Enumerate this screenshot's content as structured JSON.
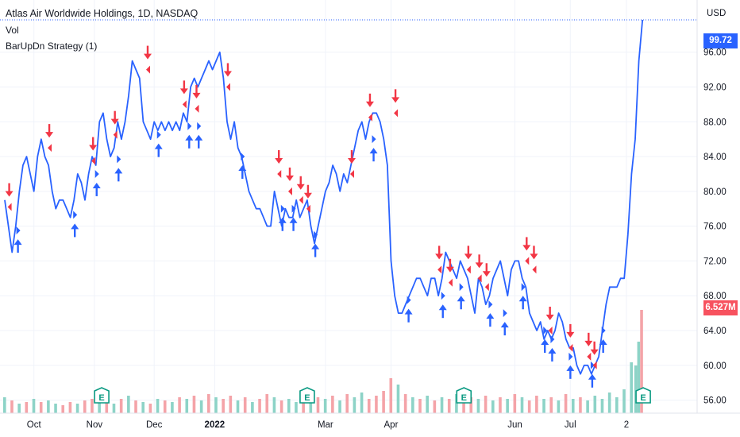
{
  "header": {
    "title": "Atlas Air Worldwide Holdings, 1D, NASDAQ",
    "vol_label": "Vol",
    "strategy_label": "BarUpDn Strategy (1)",
    "currency": "USD"
  },
  "price_label": {
    "value": "99.72",
    "color": "#2962ff"
  },
  "volume_label": {
    "value": "6.527M",
    "color": "#f7525f"
  },
  "colors": {
    "line": "#2962ff",
    "up": "#2962ff",
    "down": "#f23645",
    "vol_up": "#8dd3c7",
    "vol_down": "#f4a3a8",
    "earnings": "#089981"
  },
  "chart_data": {
    "type": "line",
    "ylabel": "",
    "yticks": [
      56,
      60,
      64,
      68,
      72,
      76,
      80,
      84,
      88,
      92,
      96
    ],
    "ytick_labels": [
      "56.00",
      "60.00",
      "64.00",
      "68.00",
      "72.00",
      "76.00",
      "80.00",
      "84.00",
      "88.00",
      "92.00",
      "96.00"
    ],
    "ylim": [
      54.5,
      102
    ],
    "xlim": [
      0,
      95
    ],
    "xticks": [
      {
        "label": "Oct",
        "x": 4
      },
      {
        "label": "Nov",
        "x": 12.3
      },
      {
        "label": "Dec",
        "x": 20.5
      },
      {
        "label": "2022",
        "x": 28.8
      },
      {
        "label": "Mar",
        "x": 44
      },
      {
        "label": "Apr",
        "x": 53
      },
      {
        "label": "Jun",
        "x": 70
      },
      {
        "label": "Jul",
        "x": 77.6
      },
      {
        "label": "2",
        "x": 85.3
      }
    ],
    "series": [
      {
        "values": [
          [
            0,
            79
          ],
          [
            0.5,
            76
          ],
          [
            1,
            73
          ],
          [
            1.5,
            76
          ],
          [
            2,
            80
          ],
          [
            2.5,
            83
          ],
          [
            3,
            84
          ],
          [
            3.5,
            82
          ],
          [
            4,
            80
          ],
          [
            4.5,
            84
          ],
          [
            5,
            86
          ],
          [
            5.5,
            84
          ],
          [
            6,
            83
          ],
          [
            6.5,
            80
          ],
          [
            7,
            78
          ],
          [
            7.5,
            79
          ],
          [
            8,
            79
          ],
          [
            8.5,
            78
          ],
          [
            9,
            77
          ],
          [
            9.5,
            79
          ],
          [
            10,
            82
          ],
          [
            10.5,
            81
          ],
          [
            11,
            79
          ],
          [
            11.5,
            82
          ],
          [
            12,
            84
          ],
          [
            12.5,
            83
          ],
          [
            13,
            88
          ],
          [
            13.5,
            89
          ],
          [
            14,
            86
          ],
          [
            14.5,
            84
          ],
          [
            15,
            85
          ],
          [
            15.5,
            88
          ],
          [
            16,
            86
          ],
          [
            16.5,
            88
          ],
          [
            17,
            91
          ],
          [
            17.5,
            95
          ],
          [
            18,
            94
          ],
          [
            18.5,
            93
          ],
          [
            19,
            88
          ],
          [
            19.5,
            87
          ],
          [
            20,
            86
          ],
          [
            20.5,
            88
          ],
          [
            21,
            87
          ],
          [
            21.5,
            88
          ],
          [
            22,
            87
          ],
          [
            22.5,
            88
          ],
          [
            23,
            87
          ],
          [
            23.5,
            88
          ],
          [
            24,
            87
          ],
          [
            24.5,
            89
          ],
          [
            25,
            88
          ],
          [
            25.5,
            92
          ],
          [
            26,
            93
          ],
          [
            26.5,
            92
          ],
          [
            27,
            93
          ],
          [
            27.5,
            94
          ],
          [
            28,
            95
          ],
          [
            28.5,
            94
          ],
          [
            29,
            95
          ],
          [
            29.5,
            96
          ],
          [
            30,
            93
          ],
          [
            30.5,
            88
          ],
          [
            31,
            86
          ],
          [
            31.5,
            88
          ],
          [
            32,
            85
          ],
          [
            32.5,
            84
          ],
          [
            33,
            82
          ],
          [
            33.5,
            80
          ],
          [
            34,
            79
          ],
          [
            34.5,
            78
          ],
          [
            35,
            78
          ],
          [
            35.5,
            77
          ],
          [
            36,
            76
          ],
          [
            36.5,
            76
          ],
          [
            37,
            80
          ],
          [
            37.5,
            78
          ],
          [
            38,
            76
          ],
          [
            38.5,
            78
          ],
          [
            39,
            77
          ],
          [
            39.5,
            77
          ],
          [
            40,
            79
          ],
          [
            40.5,
            77
          ],
          [
            41,
            78
          ],
          [
            41.5,
            79
          ],
          [
            42,
            76
          ],
          [
            42.5,
            74
          ],
          [
            43,
            76
          ],
          [
            43.5,
            78
          ],
          [
            44,
            80
          ],
          [
            44.5,
            81
          ],
          [
            45,
            83
          ],
          [
            45.5,
            82
          ],
          [
            46,
            80
          ],
          [
            46.5,
            82
          ],
          [
            47,
            81
          ],
          [
            47.5,
            83
          ],
          [
            48,
            85
          ],
          [
            48.5,
            87
          ],
          [
            49,
            88
          ],
          [
            49.5,
            86
          ],
          [
            50,
            88
          ],
          [
            50.5,
            89
          ],
          [
            51,
            89
          ],
          [
            51.5,
            88
          ],
          [
            52,
            86
          ],
          [
            52.5,
            83
          ],
          [
            53,
            72
          ],
          [
            53.5,
            68
          ],
          [
            54,
            66
          ],
          [
            54.5,
            66
          ],
          [
            55,
            67
          ],
          [
            55.5,
            68
          ],
          [
            56,
            69
          ],
          [
            56.5,
            70
          ],
          [
            57,
            70
          ],
          [
            57.5,
            69
          ],
          [
            58,
            68
          ],
          [
            58.5,
            70
          ],
          [
            59,
            70
          ],
          [
            59.5,
            68
          ],
          [
            60,
            70
          ],
          [
            60.5,
            73
          ],
          [
            61,
            72
          ],
          [
            61.5,
            71
          ],
          [
            62,
            70
          ],
          [
            62.5,
            72
          ],
          [
            63,
            71
          ],
          [
            63.5,
            70
          ],
          [
            64,
            68
          ],
          [
            64.5,
            66
          ],
          [
            65,
            70
          ],
          [
            65.5,
            69
          ],
          [
            66,
            67
          ],
          [
            66.5,
            68
          ],
          [
            67,
            70
          ],
          [
            67.5,
            71
          ],
          [
            68,
            72
          ],
          [
            68.5,
            70
          ],
          [
            69,
            68
          ],
          [
            69.5,
            71
          ],
          [
            70,
            72
          ],
          [
            70.5,
            72
          ],
          [
            71,
            70
          ],
          [
            71.5,
            69
          ],
          [
            72,
            66
          ],
          [
            72.5,
            65
          ],
          [
            73,
            64
          ],
          [
            73.5,
            65
          ],
          [
            74,
            63
          ],
          [
            74.5,
            64
          ],
          [
            75,
            63
          ],
          [
            75.5,
            64
          ],
          [
            76,
            66
          ],
          [
            76.5,
            65
          ],
          [
            77,
            63
          ],
          [
            77.5,
            62
          ],
          [
            78,
            62
          ],
          [
            78.5,
            60
          ],
          [
            79,
            59
          ],
          [
            79.5,
            60
          ],
          [
            80,
            60
          ],
          [
            80.5,
            59
          ],
          [
            81,
            60
          ],
          [
            81.5,
            61
          ],
          [
            82,
            64
          ],
          [
            82.5,
            67
          ],
          [
            83,
            69
          ],
          [
            83.5,
            69
          ],
          [
            84,
            69
          ],
          [
            84.5,
            70
          ],
          [
            85,
            70
          ],
          [
            85.5,
            75
          ],
          [
            86,
            82
          ],
          [
            86.5,
            86
          ],
          [
            87,
            95
          ],
          [
            87.5,
            99.72
          ]
        ]
      }
    ],
    "signals_up": [
      [
        1.7,
        75.5
      ],
      [
        9.5,
        77.3
      ],
      [
        12.5,
        82
      ],
      [
        15.5,
        83.7
      ],
      [
        21,
        86.5
      ],
      [
        25.2,
        87.5
      ],
      [
        26.5,
        87.5
      ],
      [
        32.5,
        84
      ],
      [
        38,
        78
      ],
      [
        39.5,
        78
      ],
      [
        42.5,
        75
      ],
      [
        50.5,
        86
      ],
      [
        55.3,
        67.5
      ],
      [
        60,
        68
      ],
      [
        62.5,
        69
      ],
      [
        66.5,
        67
      ],
      [
        68.5,
        66
      ],
      [
        71,
        69
      ],
      [
        74,
        64
      ],
      [
        75,
        63
      ],
      [
        77.5,
        61
      ],
      [
        80.5,
        60
      ],
      [
        82,
        64
      ]
    ],
    "signals_down": [
      [
        0.5,
        78.2
      ],
      [
        6,
        85
      ],
      [
        12,
        83.5
      ],
      [
        15,
        86.5
      ],
      [
        19.5,
        94
      ],
      [
        24.5,
        90
      ],
      [
        26.2,
        89.5
      ],
      [
        30.5,
        92
      ],
      [
        37.5,
        82
      ],
      [
        39,
        80
      ],
      [
        40.5,
        79
      ],
      [
        41.5,
        78
      ],
      [
        47.5,
        82
      ],
      [
        50,
        88.5
      ],
      [
        53.5,
        89
      ],
      [
        59.5,
        71
      ],
      [
        61,
        69.5
      ],
      [
        63.5,
        71
      ],
      [
        65,
        70
      ],
      [
        66,
        69
      ],
      [
        71.5,
        72
      ],
      [
        72.5,
        71
      ],
      [
        74.7,
        64
      ],
      [
        77.5,
        62
      ],
      [
        80,
        61
      ],
      [
        80.8,
        60
      ]
    ],
    "volume": [
      [
        0,
        1.0,
        1
      ],
      [
        1,
        0.8,
        0
      ],
      [
        2,
        0.6,
        1
      ],
      [
        3,
        0.7,
        0
      ],
      [
        4,
        0.9,
        1
      ],
      [
        5,
        0.7,
        0
      ],
      [
        6,
        0.8,
        1
      ],
      [
        7,
        0.6,
        1
      ],
      [
        8,
        0.5,
        0
      ],
      [
        9,
        0.7,
        0
      ],
      [
        10,
        0.6,
        1
      ],
      [
        11,
        0.8,
        0
      ],
      [
        12,
        0.9,
        0
      ],
      [
        13,
        1.0,
        1
      ],
      [
        14,
        0.7,
        0
      ],
      [
        15,
        0.6,
        1
      ],
      [
        16,
        0.9,
        0
      ],
      [
        17,
        1.1,
        1
      ],
      [
        18,
        0.8,
        0
      ],
      [
        19,
        0.7,
        1
      ],
      [
        20,
        0.6,
        0
      ],
      [
        21,
        0.9,
        1
      ],
      [
        22,
        0.8,
        0
      ],
      [
        23,
        0.7,
        1
      ],
      [
        24,
        1.0,
        0
      ],
      [
        25,
        0.9,
        1
      ],
      [
        26,
        1.1,
        0
      ],
      [
        27,
        0.8,
        1
      ],
      [
        28,
        1.2,
        0
      ],
      [
        29,
        1.0,
        1
      ],
      [
        30,
        0.9,
        0
      ],
      [
        31,
        1.1,
        0
      ],
      [
        32,
        0.8,
        1
      ],
      [
        33,
        1.0,
        0
      ],
      [
        34,
        0.7,
        1
      ],
      [
        35,
        0.9,
        0
      ],
      [
        36,
        1.2,
        0
      ],
      [
        37,
        1.0,
        1
      ],
      [
        38,
        0.8,
        0
      ],
      [
        39,
        0.9,
        1
      ],
      [
        40,
        0.7,
        1
      ],
      [
        41,
        1.3,
        0
      ],
      [
        42,
        0.8,
        1
      ],
      [
        43,
        1.0,
        0
      ],
      [
        44,
        0.9,
        1
      ],
      [
        45,
        1.1,
        0
      ],
      [
        46,
        0.8,
        1
      ],
      [
        47,
        1.2,
        0
      ],
      [
        48,
        1.0,
        1
      ],
      [
        49,
        1.3,
        1
      ],
      [
        50,
        0.9,
        0
      ],
      [
        51,
        1.1,
        0
      ],
      [
        52,
        1.4,
        0
      ],
      [
        53,
        2.2,
        0
      ],
      [
        54,
        1.8,
        1
      ],
      [
        55,
        1.2,
        0
      ],
      [
        56,
        1.0,
        1
      ],
      [
        57,
        0.9,
        0
      ],
      [
        58,
        1.1,
        1
      ],
      [
        59,
        0.8,
        0
      ],
      [
        60,
        1.0,
        1
      ],
      [
        61,
        0.9,
        0
      ],
      [
        62,
        1.2,
        1
      ],
      [
        63,
        0.8,
        0
      ],
      [
        64,
        1.0,
        0
      ],
      [
        65,
        0.9,
        1
      ],
      [
        66,
        1.1,
        0
      ],
      [
        67,
        0.8,
        1
      ],
      [
        68,
        1.0,
        0
      ],
      [
        69,
        0.9,
        1
      ],
      [
        70,
        1.2,
        0
      ],
      [
        71,
        1.0,
        1
      ],
      [
        72,
        0.8,
        0
      ],
      [
        73,
        1.1,
        0
      ],
      [
        74,
        0.9,
        1
      ],
      [
        75,
        1.0,
        0
      ],
      [
        76,
        0.8,
        1
      ],
      [
        77,
        1.2,
        0
      ],
      [
        78,
        0.9,
        1
      ],
      [
        79,
        1.0,
        0
      ],
      [
        80,
        0.8,
        1
      ],
      [
        81,
        1.1,
        1
      ],
      [
        82,
        0.9,
        1
      ],
      [
        83,
        1.3,
        1
      ],
      [
        84,
        1.0,
        1
      ],
      [
        85,
        1.5,
        1
      ],
      [
        86,
        3.2,
        1
      ],
      [
        86.6,
        3.0,
        1
      ],
      [
        87,
        4.5,
        1
      ],
      [
        87.4,
        6.5,
        0
      ]
    ],
    "earnings_x": [
      13.3,
      41.5,
      63,
      87.6
    ]
  }
}
